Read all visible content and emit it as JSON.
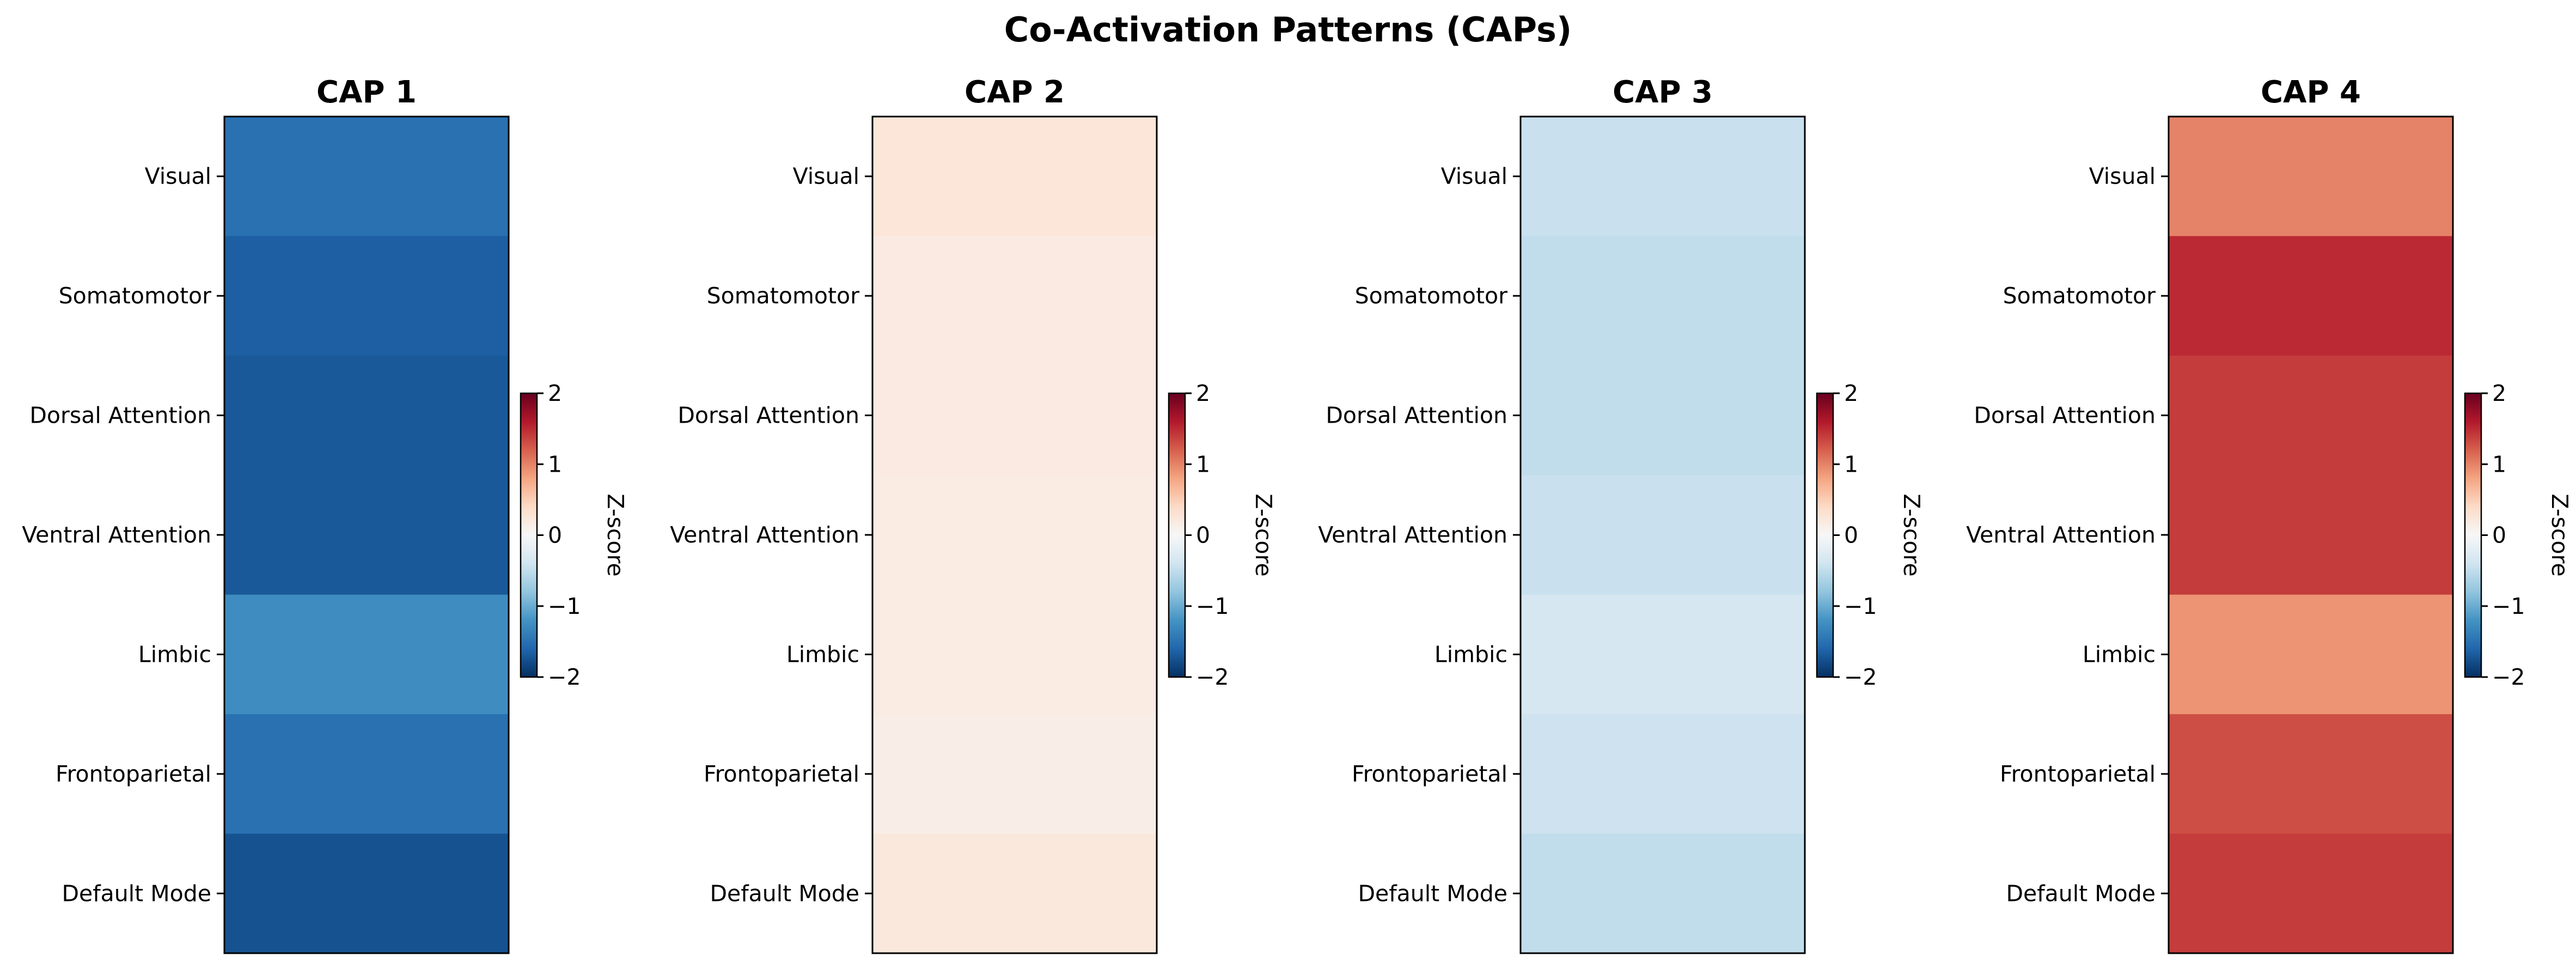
{
  "figure": {
    "title": "Co-Activation Patterns (CAPs)"
  },
  "chart_data": [
    {
      "type": "heatmap",
      "title": "CAP 1",
      "rows": [
        "Visual",
        "Somatomotor",
        "Dorsal Attention",
        "Ventral Attention",
        "Limbic",
        "Frontoparietal",
        "Default Mode"
      ],
      "columns": [
        ""
      ],
      "values": [
        [
          -1.5
        ],
        [
          -1.65
        ],
        [
          -1.7
        ],
        [
          -1.7
        ],
        [
          -1.25
        ],
        [
          -1.5
        ],
        [
          -1.75
        ]
      ],
      "colormap": "RdBu_r",
      "vmin": -2,
      "vmax": 2,
      "colorbar": {
        "label": "Z-score",
        "ticks": [
          2,
          1,
          0,
          -1,
          -2
        ],
        "tick_labels": [
          "2",
          "1",
          "0",
          "−1",
          "−2"
        ]
      }
    },
    {
      "type": "heatmap",
      "title": "CAP 2",
      "rows": [
        "Visual",
        "Somatomotor",
        "Dorsal Attention",
        "Ventral Attention",
        "Limbic",
        "Frontoparietal",
        "Default Mode"
      ],
      "columns": [
        ""
      ],
      "values": [
        [
          0.25
        ],
        [
          0.18
        ],
        [
          0.18
        ],
        [
          0.17
        ],
        [
          0.17
        ],
        [
          0.13
        ],
        [
          0.22
        ]
      ],
      "colormap": "RdBu_r",
      "vmin": -2,
      "vmax": 2,
      "colorbar": {
        "label": "Z-score",
        "ticks": [
          2,
          1,
          0,
          -1,
          -2
        ],
        "tick_labels": [
          "2",
          "1",
          "0",
          "−1",
          "−2"
        ]
      }
    },
    {
      "type": "heatmap",
      "title": "CAP 3",
      "rows": [
        "Visual",
        "Somatomotor",
        "Dorsal Attention",
        "Ventral Attention",
        "Limbic",
        "Frontoparietal",
        "Default Mode"
      ],
      "columns": [
        ""
      ],
      "values": [
        [
          -0.45
        ],
        [
          -0.5
        ],
        [
          -0.5
        ],
        [
          -0.45
        ],
        [
          -0.35
        ],
        [
          -0.42
        ],
        [
          -0.5
        ]
      ],
      "colormap": "RdBu_r",
      "vmin": -2,
      "vmax": 2,
      "colorbar": {
        "label": "Z-score",
        "ticks": [
          2,
          1,
          0,
          -1,
          -2
        ],
        "tick_labels": [
          "2",
          "1",
          "0",
          "−1",
          "−2"
        ]
      }
    },
    {
      "type": "heatmap",
      "title": "CAP 4",
      "rows": [
        "Visual",
        "Somatomotor",
        "Dorsal Attention",
        "Ventral Attention",
        "Limbic",
        "Frontoparietal",
        "Default Mode"
      ],
      "columns": [
        ""
      ],
      "values": [
        [
          1.0
        ],
        [
          1.5
        ],
        [
          1.4
        ],
        [
          1.4
        ],
        [
          0.9
        ],
        [
          1.3
        ],
        [
          1.4
        ]
      ],
      "colormap": "RdBu_r",
      "vmin": -2,
      "vmax": 2,
      "colorbar": {
        "label": "Z-score",
        "ticks": [
          2,
          1,
          0,
          -1,
          -2
        ],
        "tick_labels": [
          "2",
          "1",
          "0",
          "−1",
          "−2"
        ]
      }
    }
  ]
}
